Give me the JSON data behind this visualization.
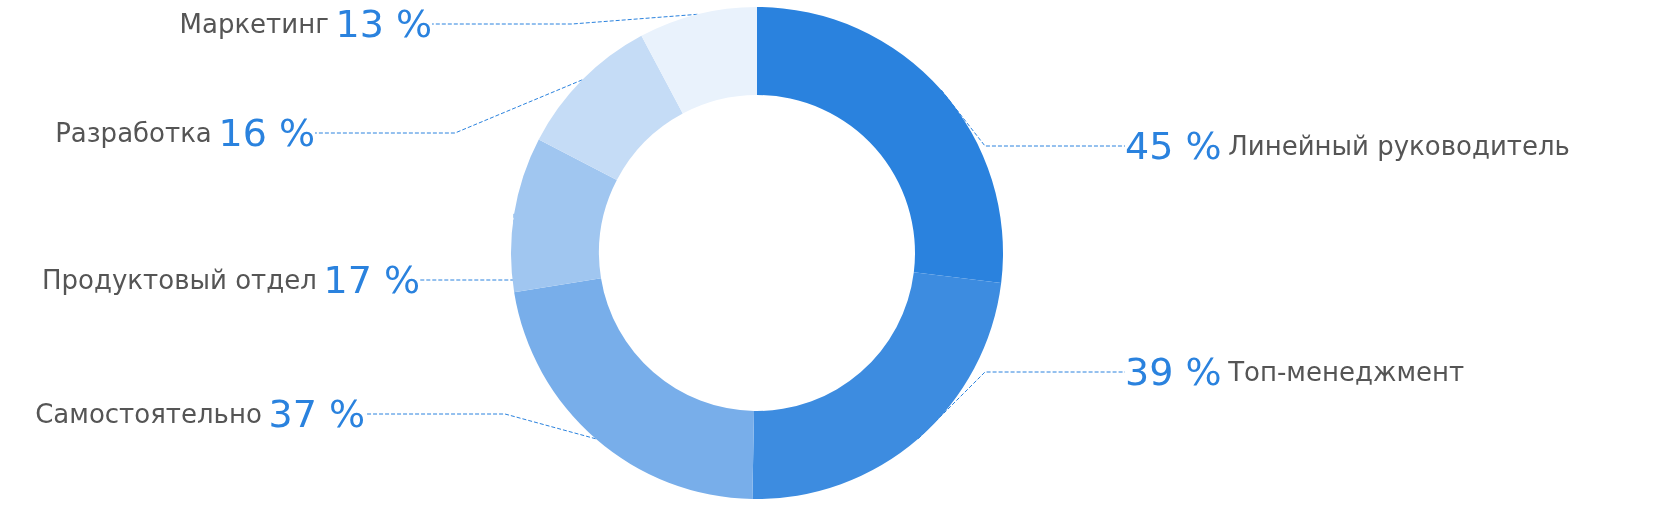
{
  "chart_data": {
    "type": "donut",
    "categories": [
      "Линейный руководитель",
      "Топ-менеджмент",
      "Самостоятельно",
      "Продуктовый отдел",
      "Разработка",
      "Маркетинг"
    ],
    "values": [
      45,
      39,
      37,
      17,
      16,
      13
    ],
    "value_labels": [
      "45 %",
      "39 %",
      "37 %",
      "17 %",
      "16 %",
      "13 %"
    ],
    "colors": [
      "#2a82de",
      "#3d8ce0",
      "#78aeea",
      "#a0c6f0",
      "#c5dcf6",
      "#e9f2fc"
    ]
  }
}
